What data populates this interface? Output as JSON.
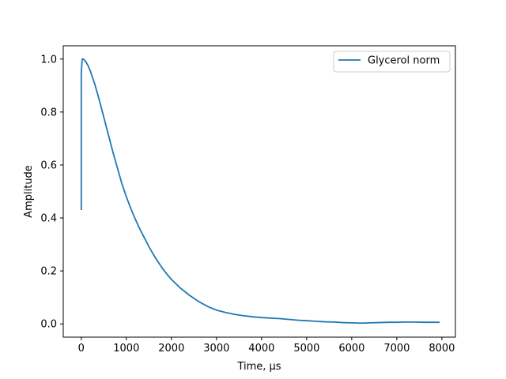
{
  "chart_data": {
    "type": "line",
    "title": "",
    "xlabel": "Time, µs",
    "ylabel": "Amplitude",
    "xlim": [
      -400,
      8300
    ],
    "ylim": [
      -0.05,
      1.05
    ],
    "xticks": [
      0,
      1000,
      2000,
      3000,
      4000,
      5000,
      6000,
      7000,
      8000
    ],
    "xtick_labels": [
      "0",
      "1000",
      "2000",
      "3000",
      "4000",
      "5000",
      "6000",
      "7000",
      "8000"
    ],
    "yticks": [
      0.0,
      0.2,
      0.4,
      0.6,
      0.8,
      1.0
    ],
    "ytick_labels": [
      "0.0",
      "0.2",
      "0.4",
      "0.6",
      "0.8",
      "1.0"
    ],
    "grid": false,
    "legend_position": "top-right",
    "series": [
      {
        "name": "Glycerol norm",
        "color": "#1f77b4",
        "x": [
          0,
          0,
          20,
          50,
          100,
          150,
          200,
          300,
          400,
          500,
          600,
          700,
          800,
          900,
          1000,
          1100,
          1200,
          1300,
          1400,
          1500,
          1600,
          1700,
          1800,
          1900,
          2000,
          2200,
          2400,
          2600,
          2800,
          3000,
          3200,
          3400,
          3600,
          3800,
          4000,
          4200,
          4400,
          4600,
          4800,
          5000,
          5200,
          5400,
          5600,
          5800,
          6000,
          6200,
          6400,
          6600,
          6800,
          7000,
          7200,
          7400,
          7600,
          7800,
          7950
        ],
        "y": [
          0.43,
          0.95,
          1.0,
          1.0,
          0.99,
          0.975,
          0.955,
          0.905,
          0.845,
          0.78,
          0.715,
          0.65,
          0.59,
          0.53,
          0.48,
          0.435,
          0.395,
          0.358,
          0.325,
          0.292,
          0.262,
          0.235,
          0.21,
          0.188,
          0.168,
          0.135,
          0.108,
          0.085,
          0.066,
          0.052,
          0.043,
          0.036,
          0.031,
          0.027,
          0.024,
          0.022,
          0.02,
          0.017,
          0.014,
          0.012,
          0.01,
          0.008,
          0.007,
          0.005,
          0.004,
          0.003,
          0.004,
          0.005,
          0.006,
          0.006,
          0.007,
          0.007,
          0.006,
          0.006,
          0.006
        ]
      }
    ]
  }
}
